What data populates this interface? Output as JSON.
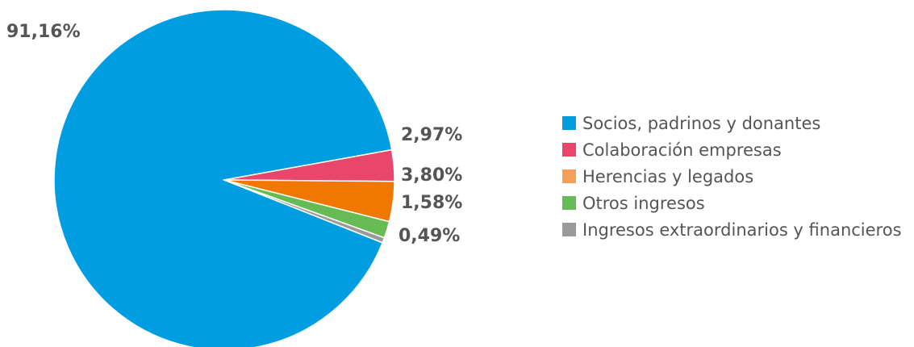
{
  "chart_data": {
    "type": "pie",
    "title": "",
    "legend_position": "right",
    "slices": [
      {
        "name": "Socios, padrinos y donantes",
        "value": 91.16,
        "label": "91,16%",
        "color": "#009ee0"
      },
      {
        "name": "Colaboración empresas",
        "value": 2.97,
        "label": "2,97%",
        "color": "#e8466b"
      },
      {
        "name": "Herencias y legados",
        "value": 3.8,
        "label": "3,80%",
        "color": "#f07800"
      },
      {
        "name": "Otros ingresos",
        "value": 1.58,
        "label": "1,58%",
        "color": "#66bb55"
      },
      {
        "name": "Ingresos extraordinarios y financieros",
        "value": 0.49,
        "label": "0,49%",
        "color": "#9a9a9a"
      }
    ],
    "legend_colors": [
      "#009ee0",
      "#e8466b",
      "#f5a05a",
      "#66bb55",
      "#9a9a9a"
    ]
  }
}
